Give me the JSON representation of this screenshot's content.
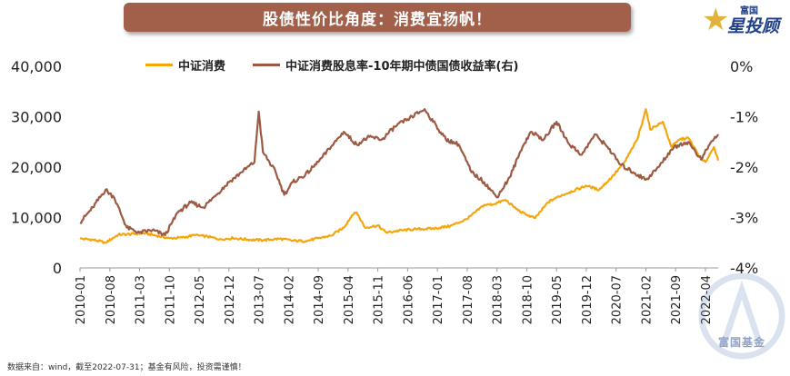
{
  "banner": {
    "title": "股债性价比角度：消费宜扬帆！"
  },
  "logo": {
    "small": "富国",
    "main": "星投顾",
    "icon": "star-icon"
  },
  "watermark": {
    "text": "富国基金"
  },
  "source_note": "数据来自：wind，截至2022-07-31；基金有风险，投资需谨慎！",
  "colors": {
    "consumer_index": "#f4a60c",
    "spread": "#9c5a42",
    "axis": "#999999"
  },
  "chart_data": {
    "type": "line",
    "x_type": "date",
    "x_tick_labels": [
      "2010-01",
      "2010-08",
      "2011-03",
      "2011-10",
      "2012-05",
      "2012-12",
      "2013-07",
      "2014-02",
      "2014-09",
      "2015-04",
      "2015-11",
      "2016-06",
      "2017-01",
      "2017-08",
      "2018-03",
      "2018-10",
      "2019-05",
      "2019-12",
      "2020-07",
      "2021-02",
      "2021-09",
      "2022-04"
    ],
    "left_axis": {
      "ticks": [
        "0",
        "10,000",
        "20,000",
        "30,000",
        "40,000"
      ],
      "range": [
        0,
        40000
      ]
    },
    "right_axis": {
      "ticks": [
        "0%",
        "-1%",
        "-2%",
        "-3%",
        "-4%"
      ],
      "range": [
        -4,
        0
      ]
    },
    "legend_position": "top",
    "series": [
      {
        "name": "中证消费",
        "axis": "left",
        "points": [
          [
            "2010-01",
            5800
          ],
          [
            "2010-04",
            5600
          ],
          [
            "2010-07",
            5000
          ],
          [
            "2010-10",
            6600
          ],
          [
            "2011-01",
            6700
          ],
          [
            "2011-04",
            6900
          ],
          [
            "2011-07",
            6400
          ],
          [
            "2011-10",
            5900
          ],
          [
            "2012-01",
            6000
          ],
          [
            "2012-04",
            6500
          ],
          [
            "2012-07",
            6200
          ],
          [
            "2012-10",
            5700
          ],
          [
            "2013-01",
            5900
          ],
          [
            "2013-05",
            5600
          ],
          [
            "2013-08",
            5500
          ],
          [
            "2013-12",
            5800
          ],
          [
            "2014-03",
            5400
          ],
          [
            "2014-06",
            5300
          ],
          [
            "2014-09",
            5900
          ],
          [
            "2014-12",
            6400
          ],
          [
            "2015-03",
            8000
          ],
          [
            "2015-05",
            10500
          ],
          [
            "2015-06",
            11000
          ],
          [
            "2015-08",
            8000
          ],
          [
            "2015-11",
            8400
          ],
          [
            "2016-01",
            7000
          ],
          [
            "2016-04",
            7400
          ],
          [
            "2016-08",
            7700
          ],
          [
            "2016-12",
            7800
          ],
          [
            "2017-04",
            8300
          ],
          [
            "2017-08",
            9700
          ],
          [
            "2017-12",
            12500
          ],
          [
            "2018-02",
            12600
          ],
          [
            "2018-05",
            13500
          ],
          [
            "2018-08",
            11400
          ],
          [
            "2018-10",
            10500
          ],
          [
            "2018-12",
            9900
          ],
          [
            "2019-03",
            13000
          ],
          [
            "2019-05",
            14000
          ],
          [
            "2019-08",
            15000
          ],
          [
            "2019-12",
            16300
          ],
          [
            "2020-03",
            15500
          ],
          [
            "2020-06",
            18000
          ],
          [
            "2020-09",
            21000
          ],
          [
            "2020-12",
            25500
          ],
          [
            "2021-02",
            31500
          ],
          [
            "2021-03",
            27500
          ],
          [
            "2021-06",
            29000
          ],
          [
            "2021-08",
            24000
          ],
          [
            "2021-10",
            25500
          ],
          [
            "2021-12",
            25800
          ],
          [
            "2022-03",
            21500
          ],
          [
            "2022-04",
            21000
          ],
          [
            "2022-06",
            24000
          ],
          [
            "2022-07",
            21300
          ]
        ]
      },
      {
        "name": "中证消费股息率-10年期中债国债收益率(右)",
        "axis": "right",
        "points": [
          [
            "2010-01",
            -3.1
          ],
          [
            "2010-04",
            -2.8
          ],
          [
            "2010-07",
            -2.45
          ],
          [
            "2010-09",
            -2.6
          ],
          [
            "2010-12",
            -3.2
          ],
          [
            "2011-03",
            -3.3
          ],
          [
            "2011-06",
            -3.25
          ],
          [
            "2011-09",
            -3.35
          ],
          [
            "2011-12",
            -2.9
          ],
          [
            "2012-03",
            -2.7
          ],
          [
            "2012-06",
            -2.8
          ],
          [
            "2012-09",
            -2.55
          ],
          [
            "2012-12",
            -2.3
          ],
          [
            "2013-03",
            -2.1
          ],
          [
            "2013-06",
            -1.9
          ],
          [
            "2013-07",
            -0.9
          ],
          [
            "2013-08",
            -1.7
          ],
          [
            "2013-11",
            -2.1
          ],
          [
            "2014-01",
            -2.55
          ],
          [
            "2014-03",
            -2.3
          ],
          [
            "2014-06",
            -2.15
          ],
          [
            "2014-09",
            -1.9
          ],
          [
            "2014-12",
            -1.6
          ],
          [
            "2015-03",
            -1.3
          ],
          [
            "2015-06",
            -1.55
          ],
          [
            "2015-09",
            -1.4
          ],
          [
            "2015-12",
            -1.45
          ],
          [
            "2016-03",
            -1.2
          ],
          [
            "2016-06",
            -1.05
          ],
          [
            "2016-10",
            -0.85
          ],
          [
            "2016-12",
            -1.1
          ],
          [
            "2017-03",
            -1.45
          ],
          [
            "2017-06",
            -1.55
          ],
          [
            "2017-09",
            -2.1
          ],
          [
            "2017-12",
            -2.3
          ],
          [
            "2018-03",
            -2.6
          ],
          [
            "2018-06",
            -2.2
          ],
          [
            "2018-09",
            -1.6
          ],
          [
            "2018-11",
            -1.3
          ],
          [
            "2019-02",
            -1.45
          ],
          [
            "2019-05",
            -1.1
          ],
          [
            "2019-08",
            -1.55
          ],
          [
            "2019-11",
            -1.75
          ],
          [
            "2020-02",
            -1.35
          ],
          [
            "2020-05",
            -1.6
          ],
          [
            "2020-08",
            -1.95
          ],
          [
            "2020-11",
            -2.1
          ],
          [
            "2021-02",
            -2.25
          ],
          [
            "2021-05",
            -2.0
          ],
          [
            "2021-08",
            -1.65
          ],
          [
            "2021-10",
            -1.55
          ],
          [
            "2021-12",
            -1.5
          ],
          [
            "2022-03",
            -1.85
          ],
          [
            "2022-05",
            -1.55
          ],
          [
            "2022-07",
            -1.35
          ]
        ]
      }
    ]
  }
}
